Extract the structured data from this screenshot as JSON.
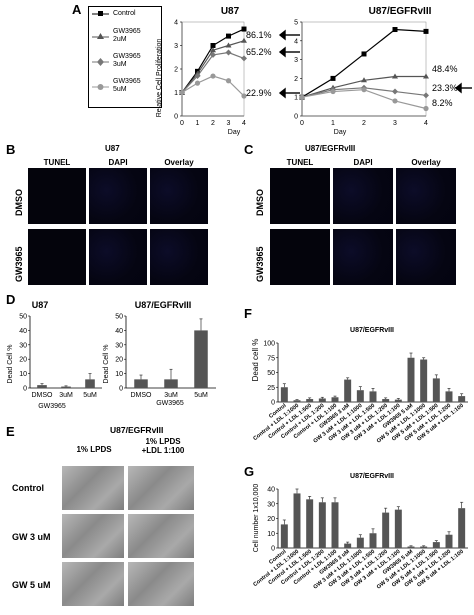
{
  "panels": {
    "A": "A",
    "B": "B",
    "C": "C",
    "D": "D",
    "E": "E",
    "F": "F",
    "G": "G"
  },
  "panelA": {
    "legend": [
      "Control",
      "GW3965\n2uM",
      "GW3965\n3uM",
      "GW3965\n5uM"
    ],
    "ylabel": "Relative Cell Proliferation",
    "xlabel": "Day",
    "legend_colors": [
      "#000000",
      "#555555",
      "#777777",
      "#999999"
    ],
    "charts": [
      {
        "title": "U87",
        "pct": [
          "86.1%",
          "65.2%",
          "22.9%"
        ]
      },
      {
        "title": "U87/EGFRvIII",
        "pct": [
          "48.4%",
          "23.3%",
          "8.2%"
        ]
      }
    ]
  },
  "panelB": {
    "title": "U87",
    "cols": [
      "TUNEL",
      "DAPI",
      "Overlay"
    ],
    "rows": [
      "DMSO",
      "GW3965"
    ]
  },
  "panelC": {
    "title": "U87/EGFRvIII",
    "cols": [
      "TUNEL",
      "DAPI",
      "Overlay"
    ],
    "rows": [
      "DMSO",
      "GW3965"
    ]
  },
  "panelD": {
    "ylabel": "Dead Cell %",
    "xlabel": "GW3965",
    "charts": [
      {
        "title": "U87"
      },
      {
        "title": "U87/EGFRvIII"
      }
    ]
  },
  "panelE": {
    "title": "U87/EGFRvIII",
    "cols": [
      "1% LPDS",
      "1% LPDS\n+LDL 1:100"
    ],
    "rows": [
      "Control",
      "GW 3 uM",
      "GW 5 uM"
    ]
  },
  "panelF": {
    "title": "U87/EGFRvIII",
    "ylabel": "Dead cell %"
  },
  "panelG": {
    "title": "U87/EGFRvIII",
    "ylabel": "Cell number 1x10,000"
  },
  "chart_data": [
    {
      "type": "line",
      "id": "A-U87",
      "title": "U87",
      "xlabel": "Day",
      "ylabel": "Relative Cell Proliferation",
      "x": [
        0,
        1,
        2,
        3,
        4
      ],
      "ylim": [
        0,
        4
      ],
      "series": [
        {
          "name": "Control",
          "values": [
            1,
            1.9,
            3.0,
            3.4,
            3.7
          ]
        },
        {
          "name": "GW3965 2uM",
          "values": [
            1,
            1.8,
            2.8,
            3.0,
            3.2
          ]
        },
        {
          "name": "GW3965 3uM",
          "values": [
            1,
            1.7,
            2.6,
            2.7,
            2.45
          ]
        },
        {
          "name": "GW3965 5uM",
          "values": [
            1,
            1.4,
            1.7,
            1.5,
            0.85
          ]
        }
      ],
      "annotations": [
        "86.1%",
        "65.2%",
        "22.9%"
      ]
    },
    {
      "type": "line",
      "id": "A-EGFR",
      "title": "U87/EGFRvIII",
      "xlabel": "Day",
      "x": [
        0,
        1,
        2,
        3,
        4
      ],
      "ylim": [
        0,
        5
      ],
      "series": [
        {
          "name": "Control",
          "values": [
            1,
            2.0,
            3.3,
            4.6,
            4.5
          ]
        },
        {
          "name": "GW3965 2uM",
          "values": [
            1,
            1.5,
            1.9,
            2.1,
            2.1
          ]
        },
        {
          "name": "GW3965 3uM",
          "values": [
            1,
            1.4,
            1.5,
            1.3,
            1.1
          ]
        },
        {
          "name": "GW3965 5uM",
          "values": [
            1,
            1.3,
            1.4,
            0.8,
            0.4
          ]
        }
      ],
      "annotations": [
        "48.4%",
        "23.3%",
        "8.2%"
      ]
    },
    {
      "type": "bar",
      "id": "D-U87",
      "title": "U87",
      "ylabel": "Dead Cell %",
      "xlabel": "GW3965",
      "categories": [
        "DMSO",
        "3uM",
        "5uM"
      ],
      "values": [
        2,
        1,
        6
      ],
      "errors": [
        1,
        0.5,
        4
      ],
      "ylim": [
        0,
        50
      ],
      "yticks": [
        0,
        10,
        20,
        30,
        40,
        50
      ]
    },
    {
      "type": "bar",
      "id": "D-EGFR",
      "title": "U87/EGFRvIII",
      "xlabel": "GW3965",
      "categories": [
        "DMSO",
        "3uM",
        "5uM"
      ],
      "values": [
        6,
        6,
        40
      ],
      "errors": [
        3,
        7,
        8
      ],
      "ylim": [
        0,
        50
      ],
      "yticks": [
        0,
        10,
        20,
        30,
        40,
        50
      ]
    },
    {
      "type": "bar",
      "id": "F",
      "title": "U87/EGFRvIII",
      "ylabel": "Dead cell %",
      "categories": [
        "Control",
        "Control + LDL 1:1000",
        "Control + LDL 1:500",
        "Control + LDL 1:200",
        "Control + LDL 1:100",
        "GW3965 3 uM",
        "GW 3 uM + LDL 1:1000",
        "GW 3 uM + LDL 1:500",
        "GW 3 uM + LDL 1:200",
        "GW 3 uM + LDL 1:100",
        "GW3965 5 uM",
        "GW 5 uM + LDL 1:1000",
        "GW 5 uM + LDL 1:500",
        "GW 5 uM + LDL 1:200",
        "GW 5 uM + LDL 1:100"
      ],
      "values": [
        25,
        3,
        5,
        6,
        8,
        38,
        20,
        18,
        5,
        4,
        75,
        72,
        40,
        18,
        10
      ],
      "errors": [
        6,
        1,
        2,
        2,
        2,
        3,
        6,
        5,
        2,
        2,
        8,
        3,
        6,
        5,
        4
      ],
      "ylim": [
        0,
        100
      ],
      "yticks": [
        0,
        25,
        50,
        75,
        100
      ]
    },
    {
      "type": "bar",
      "id": "G",
      "title": "U87/EGFRvIII",
      "ylabel": "Cell number 1x10,000",
      "categories": [
        "Control",
        "Control + LDL 1:1000",
        "Control + LDL 1:500",
        "Control + LDL 1:200",
        "Control + LDL 1:100",
        "GW3965 3 uM",
        "GW 3 uM + LDL 1:1000",
        "GW 3 uM + LDL 1:500",
        "GW 3 uM + LDL 1:200",
        "GW 3 uM + LDL 1:100",
        "GW3965 5 uM",
        "GW 5 uM + LDL 1:1000",
        "GW 5 uM + LDL 1:500",
        "GW 5 uM + LDL 1:200",
        "GW 5 uM + LDL 1:100"
      ],
      "values": [
        16,
        37,
        33,
        31,
        31,
        3,
        7,
        10,
        24,
        26,
        1,
        1,
        4,
        9,
        27
      ],
      "errors": [
        3,
        3,
        2,
        3,
        3,
        1,
        2,
        3,
        3,
        2,
        0.5,
        0.5,
        1,
        2,
        4
      ],
      "ylim": [
        0,
        40
      ],
      "yticks": [
        0,
        10,
        20,
        30,
        40
      ]
    }
  ]
}
